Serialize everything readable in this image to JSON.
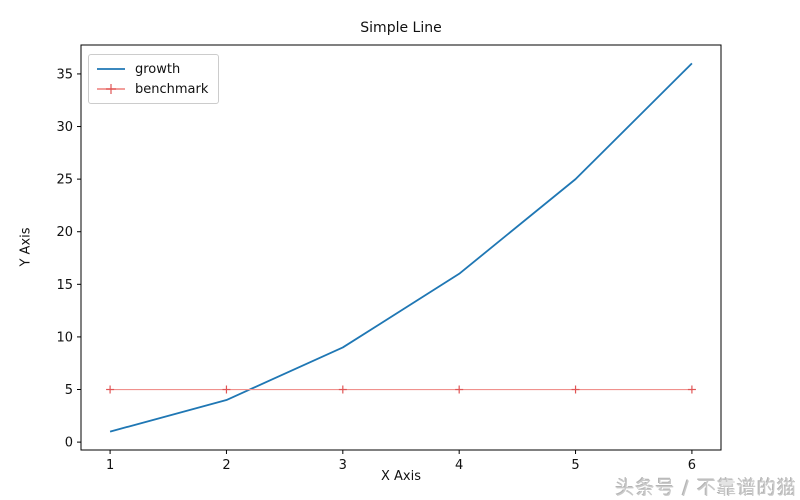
{
  "chart_data": {
    "type": "line",
    "title": "Simple Line",
    "xlabel": "X Axis",
    "ylabel": "Y Axis",
    "x": [
      1,
      2,
      3,
      4,
      5,
      6
    ],
    "series": [
      {
        "name": "growth",
        "values": [
          1,
          4,
          9,
          16,
          25,
          36
        ],
        "line_color": "#1f77b4",
        "line_width": 1.8,
        "marker": "none",
        "marker_color": "#1f77b4"
      },
      {
        "name": "benchmark",
        "values": [
          5,
          5,
          5,
          5,
          5,
          5
        ],
        "line_color": "#f0918d",
        "line_width": 1.1,
        "marker": "plus",
        "marker_color": "#e05555"
      }
    ],
    "xlim": [
      0.75,
      6.25
    ],
    "ylim": [
      -0.75,
      37.75
    ],
    "xticks": [
      1,
      2,
      3,
      4,
      5,
      6
    ],
    "yticks": [
      0,
      5,
      10,
      15,
      20,
      25,
      30,
      35
    ],
    "grid": false,
    "legend_position": "upper left",
    "axis_color": "#000000",
    "tick_label_color": "#111111"
  },
  "watermark": {
    "text": "头条号 / 不靠谱的猫"
  }
}
